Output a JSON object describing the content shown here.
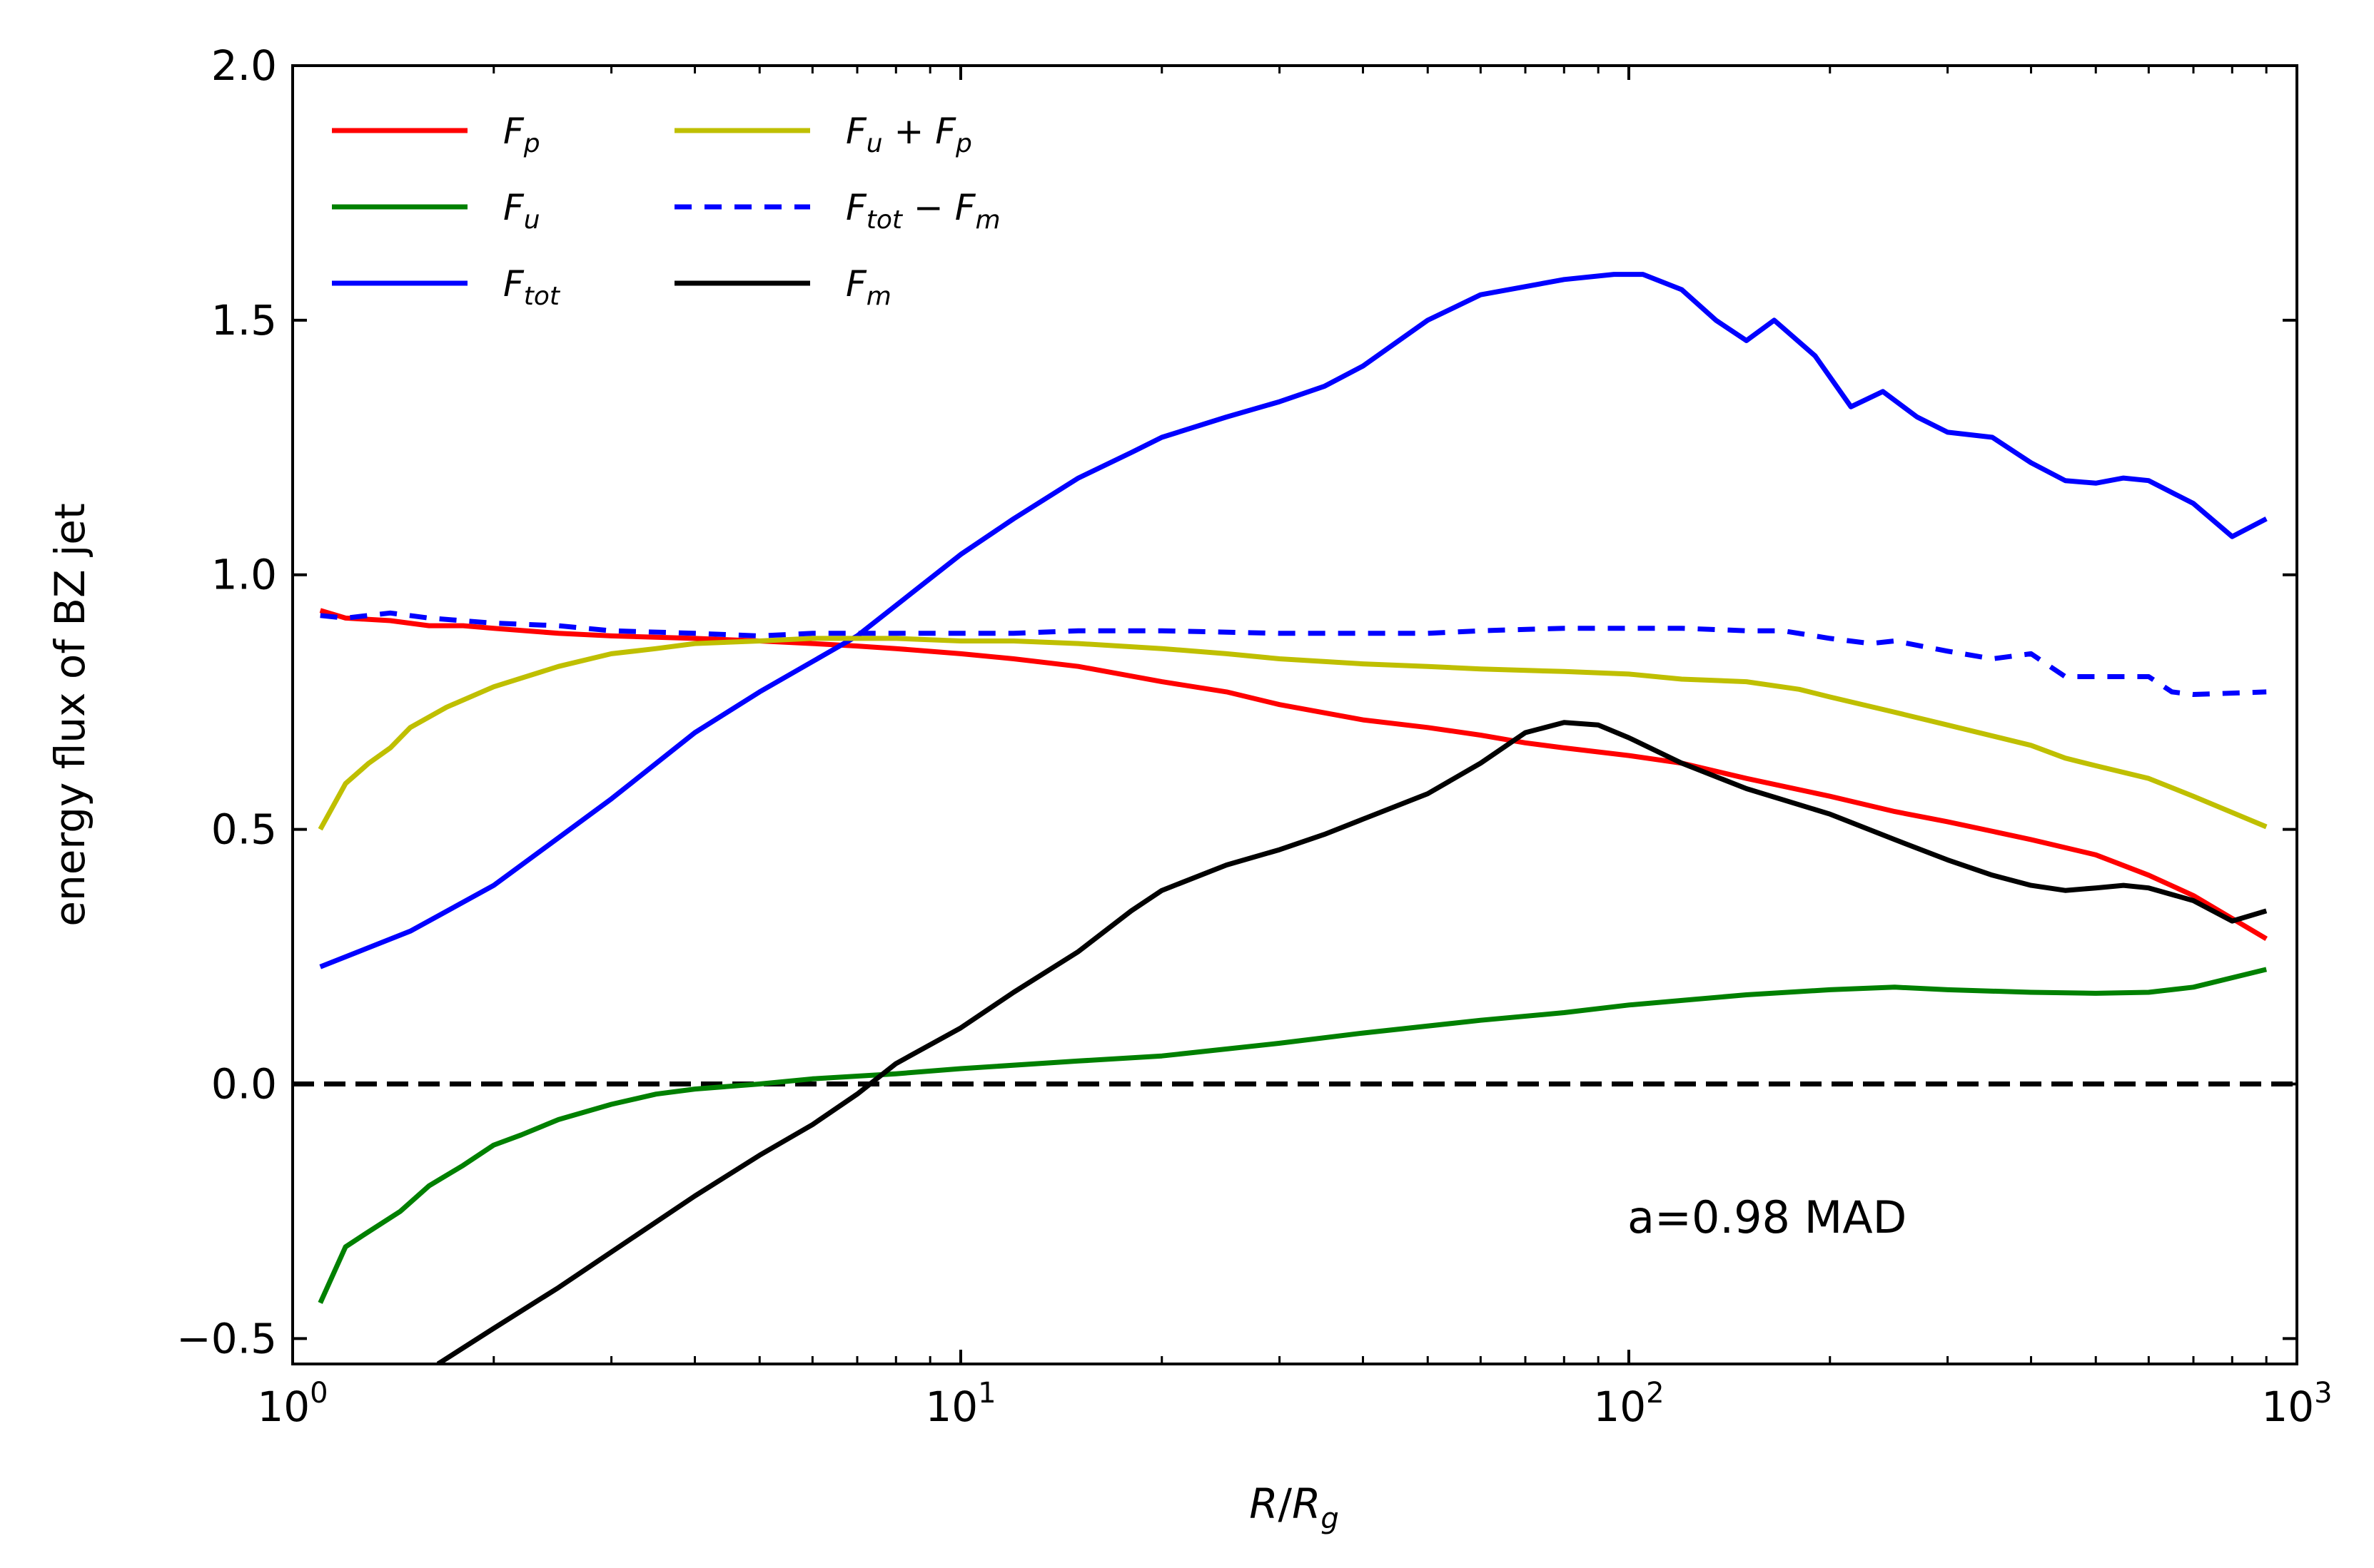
{
  "chart_data": {
    "type": "line",
    "title": "",
    "xlabel": "R/R_g",
    "ylabel": "energy flux of BZ jet",
    "xscale": "log",
    "xlim": [
      1,
      1000
    ],
    "ylim": [
      -0.55,
      2.0
    ],
    "xticks": [
      {
        "value": 1,
        "base": "10",
        "exp": "0"
      },
      {
        "value": 10,
        "base": "10",
        "exp": "1"
      },
      {
        "value": 100,
        "base": "10",
        "exp": "2"
      },
      {
        "value": 1000,
        "base": "10",
        "exp": "3"
      }
    ],
    "yticks": [
      {
        "value": -0.5,
        "label": "−0.5"
      },
      {
        "value": 0.0,
        "label": "0.0"
      },
      {
        "value": 0.5,
        "label": "0.5"
      },
      {
        "value": 1.0,
        "label": "1.0"
      },
      {
        "value": 1.5,
        "label": "1.5"
      },
      {
        "value": 2.0,
        "label": "2.0"
      }
    ],
    "annotation": "a=0.98 MAD",
    "reference_line": {
      "y": 0.0,
      "style": "dashed",
      "color": "#000000"
    },
    "legend": {
      "placement": "top-left",
      "columns": 2
    },
    "series": [
      {
        "key": "fp",
        "name": "F_p",
        "legend": {
          "main": "F",
          "sub": "p"
        },
        "color": "#ff0000",
        "style": "solid",
        "x": [
          1.1,
          1.2,
          1.4,
          1.6,
          1.8,
          2,
          2.5,
          3,
          4,
          5,
          6,
          7,
          8,
          10,
          12,
          15,
          20,
          25,
          30,
          40,
          50,
          60,
          70,
          80,
          100,
          120,
          150,
          200,
          250,
          300,
          400,
          500,
          600,
          700,
          900
        ],
        "y": [
          0.93,
          0.915,
          0.91,
          0.9,
          0.9,
          0.895,
          0.885,
          0.88,
          0.875,
          0.87,
          0.865,
          0.86,
          0.855,
          0.845,
          0.835,
          0.82,
          0.79,
          0.77,
          0.745,
          0.715,
          0.7,
          0.685,
          0.67,
          0.66,
          0.645,
          0.63,
          0.6,
          0.565,
          0.535,
          0.515,
          0.48,
          0.45,
          0.41,
          0.37,
          0.285
        ]
      },
      {
        "key": "fu",
        "name": "F_u",
        "legend": {
          "main": "F",
          "sub": "u"
        },
        "color": "#008000",
        "style": "solid",
        "x": [
          1.1,
          1.2,
          1.3,
          1.45,
          1.6,
          1.8,
          2,
          2.2,
          2.5,
          3,
          3.5,
          4,
          5,
          6,
          8,
          10,
          15,
          20,
          30,
          40,
          60,
          80,
          100,
          150,
          200,
          250,
          300,
          400,
          500,
          600,
          700,
          900
        ],
        "y": [
          -0.43,
          -0.32,
          -0.29,
          -0.25,
          -0.2,
          -0.16,
          -0.12,
          -0.1,
          -0.07,
          -0.04,
          -0.02,
          -0.01,
          0.0,
          0.01,
          0.02,
          0.03,
          0.045,
          0.055,
          0.08,
          0.1,
          0.125,
          0.14,
          0.155,
          0.175,
          0.185,
          0.19,
          0.185,
          0.18,
          0.178,
          0.18,
          0.19,
          0.225
        ]
      },
      {
        "key": "ftot",
        "name": "F_tot",
        "legend": {
          "main": "F",
          "sub": "tot"
        },
        "color": "#0000ff",
        "style": "solid",
        "x": [
          1.1,
          1.5,
          2,
          3,
          4,
          5,
          7,
          10,
          12,
          15,
          18,
          20,
          25,
          30,
          35,
          40,
          50,
          60,
          80,
          95,
          105,
          120,
          135,
          150,
          165,
          190,
          215,
          240,
          270,
          300,
          350,
          400,
          450,
          500,
          550,
          600,
          700,
          800,
          900
        ],
        "y": [
          0.23,
          0.3,
          0.39,
          0.56,
          0.69,
          0.77,
          0.88,
          1.04,
          1.11,
          1.19,
          1.24,
          1.27,
          1.31,
          1.34,
          1.37,
          1.41,
          1.5,
          1.55,
          1.58,
          1.59,
          1.59,
          1.56,
          1.5,
          1.46,
          1.5,
          1.43,
          1.33,
          1.36,
          1.31,
          1.28,
          1.27,
          1.22,
          1.185,
          1.18,
          1.19,
          1.185,
          1.14,
          1.075,
          1.11
        ]
      },
      {
        "key": "fup",
        "name": "F_u + F_p",
        "legend": {
          "main": "F",
          "sub": "u",
          "op": " + ",
          "main2": "F",
          "sub2": "p"
        },
        "color": "#bfbf00",
        "style": "solid",
        "x": [
          1.1,
          1.2,
          1.3,
          1.4,
          1.5,
          1.7,
          2,
          2.5,
          3,
          3.5,
          4,
          5,
          6,
          8,
          10,
          12,
          15,
          20,
          25,
          30,
          40,
          50,
          60,
          80,
          100,
          120,
          150,
          180,
          200,
          250,
          300,
          400,
          450,
          500,
          600,
          700,
          900
        ],
        "y": [
          0.5,
          0.59,
          0.63,
          0.66,
          0.7,
          0.74,
          0.78,
          0.82,
          0.845,
          0.855,
          0.865,
          0.87,
          0.875,
          0.875,
          0.87,
          0.87,
          0.865,
          0.855,
          0.845,
          0.835,
          0.825,
          0.82,
          0.815,
          0.81,
          0.805,
          0.795,
          0.79,
          0.775,
          0.76,
          0.73,
          0.705,
          0.665,
          0.64,
          0.625,
          0.6,
          0.565,
          0.505
        ]
      },
      {
        "key": "ftotm",
        "name": "F_tot − F_m",
        "legend": {
          "main": "F",
          "sub": "tot",
          "op": " − ",
          "main2": "F",
          "sub2": "m"
        },
        "color": "#0000ff",
        "style": "dashed",
        "x": [
          1.1,
          1.2,
          1.4,
          1.6,
          2,
          2.5,
          3,
          4,
          5,
          6,
          8,
          10,
          12,
          15,
          20,
          30,
          40,
          50,
          60,
          80,
          100,
          120,
          150,
          170,
          200,
          230,
          250,
          300,
          350,
          400,
          450,
          500,
          600,
          650,
          700,
          900
        ],
        "y": [
          0.92,
          0.915,
          0.925,
          0.915,
          0.905,
          0.9,
          0.89,
          0.885,
          0.88,
          0.885,
          0.885,
          0.885,
          0.885,
          0.89,
          0.89,
          0.885,
          0.885,
          0.885,
          0.89,
          0.895,
          0.895,
          0.895,
          0.89,
          0.89,
          0.875,
          0.865,
          0.87,
          0.85,
          0.835,
          0.845,
          0.8,
          0.8,
          0.8,
          0.77,
          0.765,
          0.77
        ]
      },
      {
        "key": "fm",
        "name": "F_m",
        "legend": {
          "main": "F",
          "sub": "m"
        },
        "color": "#000000",
        "style": "solid",
        "x": [
          1.65,
          2,
          2.5,
          3,
          4,
          5,
          6,
          7,
          8,
          10,
          12,
          15,
          18,
          20,
          25,
          30,
          35,
          40,
          50,
          60,
          70,
          80,
          90,
          100,
          120,
          150,
          200,
          250,
          300,
          350,
          400,
          450,
          500,
          550,
          600,
          700,
          800,
          900
        ],
        "y": [
          -0.55,
          -0.48,
          -0.4,
          -0.33,
          -0.22,
          -0.14,
          -0.08,
          -0.02,
          0.04,
          0.11,
          0.18,
          0.26,
          0.34,
          0.38,
          0.43,
          0.46,
          0.49,
          0.52,
          0.57,
          0.63,
          0.69,
          0.71,
          0.705,
          0.68,
          0.63,
          0.58,
          0.53,
          0.48,
          0.44,
          0.41,
          0.39,
          0.38,
          0.385,
          0.39,
          0.385,
          0.36,
          0.32,
          0.34
        ]
      }
    ]
  }
}
